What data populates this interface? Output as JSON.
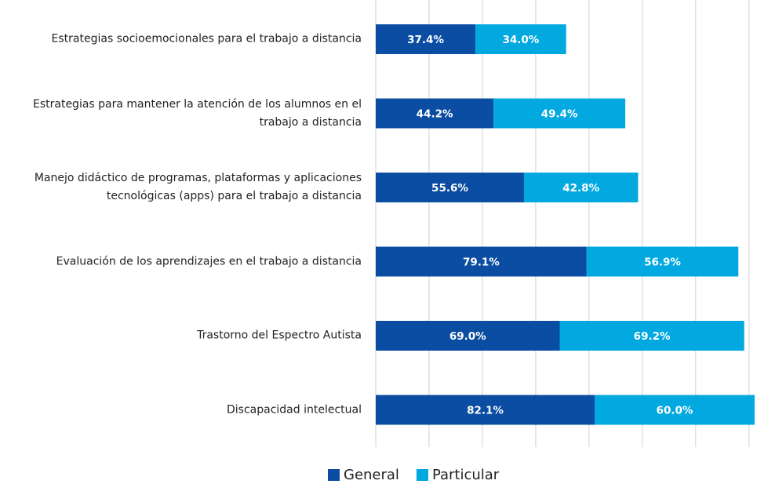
{
  "chart_data": {
    "type": "stacked_barh",
    "categories": [
      "Estrategias socioemocionales para el trabajo a distancia",
      "Estrategias para mantener la atención de los alumnos en el trabajo a distancia",
      "Manejo didáctico de programas, plataformas y aplicaciones tecnológicas (apps) para el trabajo a distancia",
      "Evaluación de los aprendizajes en el trabajo a distancia",
      "Trastorno del Espectro Autista",
      "Discapacidad intelectual"
    ],
    "series": [
      {
        "name": "General",
        "color": "#0b4da2",
        "values": [
          37.4,
          44.2,
          55.6,
          79.1,
          69.0,
          82.1
        ],
        "value_labels": [
          "37.4%",
          "44.2%",
          "55.6%",
          "79.1%",
          "69.0%",
          "82.1%"
        ]
      },
      {
        "name": "Particular",
        "color": "#02a8e0",
        "values": [
          34.0,
          49.4,
          42.8,
          56.9,
          69.2,
          60.0
        ],
        "value_labels": [
          "34.0%",
          "49.4%",
          "42.8%",
          "56.9%",
          "69.2%",
          "60.0%"
        ]
      }
    ],
    "xlim": [
      0,
      143
    ],
    "xticks": [
      0,
      20,
      40,
      60,
      80,
      100,
      120,
      140
    ],
    "grid": true,
    "legend": "bottom"
  }
}
